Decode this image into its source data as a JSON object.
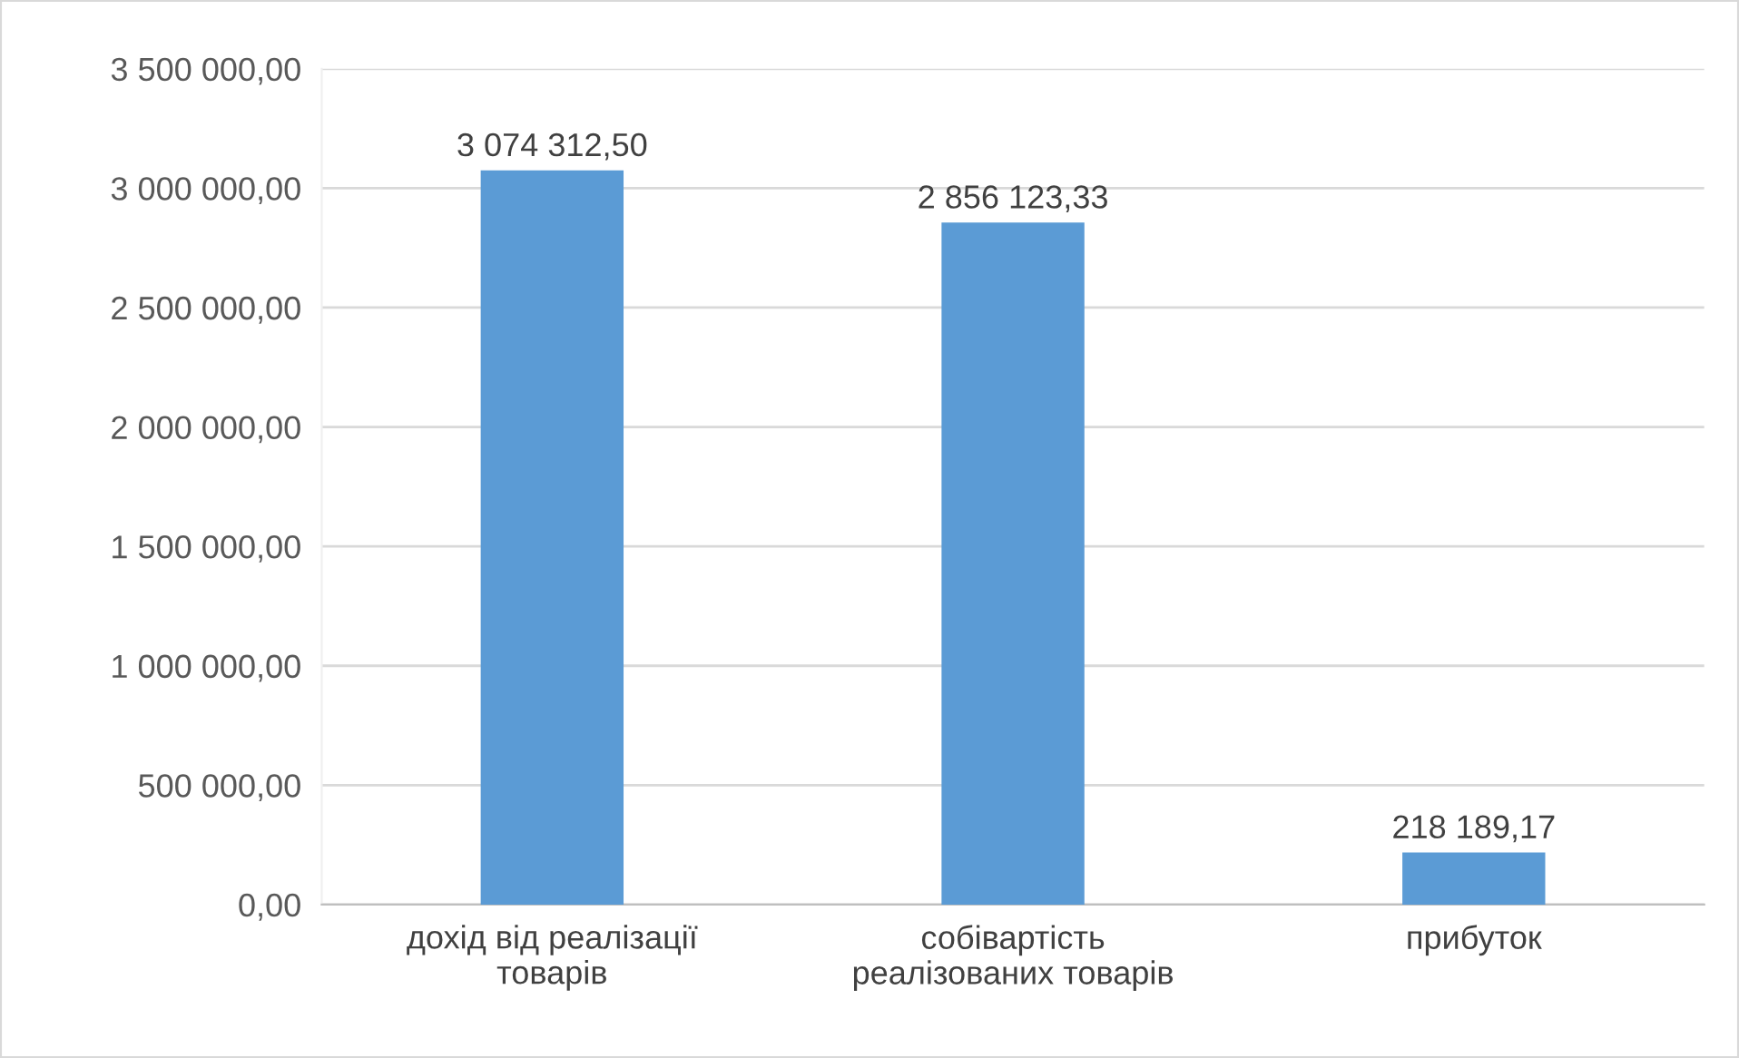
{
  "chart_data": {
    "type": "bar",
    "categories": [
      "дохід від реалізації\nтоварів",
      "собівартість\nреалізованих товарів",
      "прибуток"
    ],
    "values": [
      3074312.5,
      2856123.33,
      218189.17
    ],
    "value_labels": [
      "3 074 312,50",
      "2 856 123,33",
      "218 189,17"
    ],
    "color": "#5b9bd5",
    "ylim": [
      0,
      3500000
    ],
    "yticks": [
      {
        "value": 0,
        "label": "0,00"
      },
      {
        "value": 500000,
        "label": "500 000,00"
      },
      {
        "value": 1000000,
        "label": "1 000 000,00"
      },
      {
        "value": 1500000,
        "label": "1 500 000,00"
      },
      {
        "value": 2000000,
        "label": "2 000 000,00"
      },
      {
        "value": 2500000,
        "label": "2 500 000,00"
      },
      {
        "value": 3000000,
        "label": "3 000 000,00"
      },
      {
        "value": 3500000,
        "label": "3 500 000,00"
      }
    ],
    "grid": "y"
  }
}
